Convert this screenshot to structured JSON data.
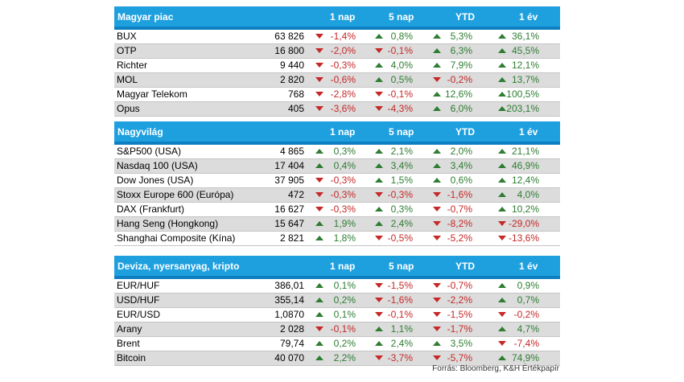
{
  "colors": {
    "header_bg": "#1ea0df",
    "up": "#2e7d32",
    "down": "#c62828",
    "row_alt": "#dcdcdc"
  },
  "columns": [
    "1 nap",
    "5 nap",
    "YTD",
    "1 év"
  ],
  "sections": [
    {
      "title": "Magyar piac",
      "rows": [
        {
          "name": "BUX",
          "value": "63 826",
          "changes": [
            "-1,4%",
            "0,8%",
            "5,3%",
            "36,1%"
          ]
        },
        {
          "name": "OTP",
          "value": "16 800",
          "changes": [
            "-2,0%",
            "-0,1%",
            "6,3%",
            "45,5%"
          ]
        },
        {
          "name": "Richter",
          "value": "9 440",
          "changes": [
            "-0,3%",
            "4,0%",
            "7,9%",
            "12,1%"
          ]
        },
        {
          "name": "MOL",
          "value": "2 820",
          "changes": [
            "-0,6%",
            "0,5%",
            "-0,2%",
            "13,7%"
          ]
        },
        {
          "name": "Magyar Telekom",
          "value": "768",
          "changes": [
            "-2,8%",
            "-0,1%",
            "12,6%",
            "100,5%"
          ]
        },
        {
          "name": "Opus",
          "value": "405",
          "changes": [
            "-3,6%",
            "-4,3%",
            "6,0%",
            "203,1%"
          ]
        }
      ]
    },
    {
      "title": "Nagyvilág",
      "rows": [
        {
          "name": "S&P500 (USA)",
          "value": "4 865",
          "changes": [
            "0,3%",
            "2,1%",
            "2,0%",
            "21,1%"
          ]
        },
        {
          "name": "Nasdaq 100 (USA)",
          "value": "17 404",
          "changes": [
            "0,4%",
            "3,4%",
            "3,4%",
            "46,9%"
          ]
        },
        {
          "name": "Dow Jones (USA)",
          "value": "37 905",
          "changes": [
            "-0,3%",
            "1,5%",
            "0,6%",
            "12,4%"
          ]
        },
        {
          "name": "Stoxx Europe 600 (Európa)",
          "value": "472",
          "changes": [
            "-0,3%",
            "-0,3%",
            "-1,6%",
            "4,0%"
          ]
        },
        {
          "name": "DAX (Frankfurt)",
          "value": "16 627",
          "changes": [
            "-0,3%",
            "0,3%",
            "-0,7%",
            "10,2%"
          ]
        },
        {
          "name": "Hang Seng (Hongkong)",
          "value": "15 647",
          "changes": [
            "1,9%",
            "2,4%",
            "-8,2%",
            "-29,0%"
          ]
        },
        {
          "name": "Shanghai Composite (Kína)",
          "value": "2 821",
          "changes": [
            "1,8%",
            "-0,5%",
            "-5,2%",
            "-13,6%"
          ]
        }
      ]
    },
    {
      "title": "Deviza, nyersanyag, kripto",
      "rows": [
        {
          "name": "EUR/HUF",
          "value": "386,01",
          "changes": [
            "0,1%",
            "-1,5%",
            "-0,7%",
            "0,9%"
          ]
        },
        {
          "name": "USD/HUF",
          "value": "355,14",
          "changes": [
            "0,2%",
            "-1,6%",
            "-2,2%",
            "0,7%"
          ]
        },
        {
          "name": "EUR/USD",
          "value": "1,0870",
          "changes": [
            "0,1%",
            "-0,1%",
            "-1,5%",
            "-0,2%"
          ]
        },
        {
          "name": "Arany",
          "value": "2 028",
          "changes": [
            "-0,1%",
            "1,1%",
            "-1,7%",
            "4,7%"
          ]
        },
        {
          "name": "Brent",
          "value": "79,74",
          "changes": [
            "0,2%",
            "2,4%",
            "3,5%",
            "-7,4%"
          ]
        },
        {
          "name": "Bitcoin",
          "value": "40 070",
          "changes": [
            "2,2%",
            "-3,7%",
            "-5,7%",
            "74,9%"
          ]
        }
      ]
    }
  ],
  "source": "Forrás: Bloomberg, K&H Értékpapír"
}
